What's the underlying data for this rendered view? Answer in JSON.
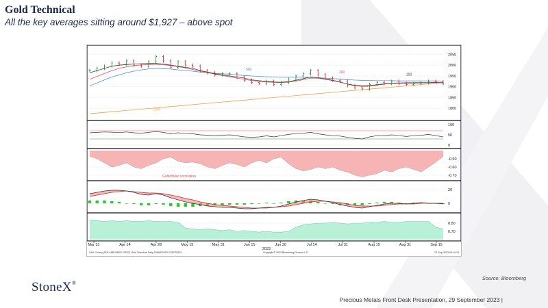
{
  "slide": {
    "title": "Gold Technical",
    "subtitle": "All the key averages sitting around $1,927 – above spot",
    "brand": "StoneX",
    "brand_mark": "®",
    "source": "Source: Bloomberg",
    "footer": "Precious Metals Front Desk Presentation, 29 September 2023 |"
  },
  "colors": {
    "ma50": "#4a90d9",
    "ma100": "#404040",
    "ma200": "#e05060",
    "ma2000": "#f0a040",
    "correlation_fill": "#f7b4b4",
    "volume_fill": "#b8f0d8",
    "macd_hist": "#22cc22"
  },
  "chart_data": {
    "type": "line",
    "title": "",
    "x_labels": [
      "Mar 31",
      "Apr 14",
      "Apr 28",
      "May 15",
      "May 31",
      "Jun 15",
      "Jun 30",
      "Jul 14",
      "Jul 31",
      "Aug 15",
      "Aug 31",
      "Sep 15"
    ],
    "x_year": "2023",
    "footer_left": "XAU Curncy (DOLLAR INDEX SPOT) Gold Technical  Daily 24MAR2023-27SEP2023",
    "footer_center": "Copyright© 2023 Bloomberg Finance L.P.",
    "footer_right": "27-Sep-2023 05:14:16",
    "panels": {
      "price": {
        "ylim": [
          1750,
          2080
        ],
        "yticks": [
          1800,
          1850,
          1900,
          1950,
          2000,
          2050
        ],
        "price": [
          1975,
          1985,
          1995,
          2010,
          2005,
          2020,
          2000,
          1995,
          2015,
          2040,
          2020,
          1990,
          2015,
          2000,
          1995,
          1975,
          1965,
          1955,
          1960,
          1960,
          1945,
          1930,
          1920,
          1915,
          1925,
          1910,
          1920,
          1935,
          1950,
          1960,
          1975,
          1955,
          1940,
          1930,
          1925,
          1905,
          1895,
          1890,
          1910,
          1920,
          1915,
          1925,
          1915,
          1910,
          1915,
          1918,
          1925,
          1922,
          1915
        ],
        "ma_labels": [
          {
            "label": "500",
            "color_key": "ma50"
          },
          {
            "label": "200",
            "color_key": "ma200"
          },
          {
            "label": "100",
            "color_key": "ma100"
          },
          {
            "label": "2000",
            "color_key": "ma2000"
          }
        ],
        "ma50": [
          1905,
          1918,
          1932,
          1945,
          1955,
          1965,
          1972,
          1978,
          1983,
          1985,
          1984,
          1982,
          1978,
          1975,
          1972,
          1968,
          1965,
          1962,
          1960,
          1958,
          1955,
          1952,
          1950,
          1948,
          1946,
          1945,
          1944,
          1944,
          1944,
          1944,
          1943,
          1942,
          1940,
          1938,
          1935,
          1933,
          1931,
          1930,
          1929,
          1928,
          1928,
          1928,
          1927,
          1927,
          1927,
          1927,
          1927,
          1927,
          1926
        ],
        "ma100": [
          1965,
          1975,
          1985,
          1995,
          2000,
          2003,
          2005,
          2007,
          2008,
          2008,
          2005,
          2000,
          1995,
          1990,
          1985,
          1975,
          1968,
          1960,
          1955,
          1950,
          1945,
          1940,
          1932,
          1928,
          1925,
          1922,
          1921,
          1924,
          1930,
          1938,
          1945,
          1942,
          1936,
          1930,
          1922,
          1912,
          1905,
          1902,
          1903,
          1908,
          1912,
          1915,
          1916,
          1917,
          1917,
          1918,
          1918,
          1919,
          1918
        ],
        "ma200": [
          1935,
          1948,
          1962,
          1975,
          1985,
          1992,
          1998,
          2001,
          2003,
          2004,
          2002,
          1998,
          1993,
          1987,
          1980,
          1972,
          1965,
          1958,
          1952,
          1946,
          1940,
          1934,
          1929,
          1925,
          1922,
          1920,
          1919,
          1921,
          1926,
          1933,
          1940,
          1939,
          1934,
          1928,
          1921,
          1913,
          1907,
          1905,
          1906,
          1910,
          1914,
          1917,
          1918,
          1919,
          1919,
          1920,
          1920,
          1920,
          1919
        ],
        "ma2000": [
          1775,
          1778,
          1781,
          1784,
          1787,
          1790,
          1793,
          1796,
          1799,
          1802,
          1805,
          1808,
          1811,
          1814,
          1817,
          1820,
          1823,
          1826,
          1829,
          1832,
          1835,
          1838,
          1841,
          1844,
          1847,
          1850,
          1853,
          1856,
          1859,
          1862,
          1865,
          1868,
          1871,
          1874,
          1877,
          1880,
          1883,
          1886,
          1889,
          1892,
          1895,
          1898,
          1901,
          1904,
          1907,
          1910,
          1913,
          1916,
          1920
        ]
      },
      "rsi": {
        "ylim": [
          -10,
          110
        ],
        "yticks": [
          0,
          50,
          100
        ],
        "values": [
          60,
          62,
          64,
          63,
          61,
          64,
          60,
          58,
          62,
          66,
          62,
          55,
          60,
          56,
          55,
          50,
          48,
          45,
          48,
          50,
          45,
          40,
          38,
          40,
          45,
          40,
          46,
          52,
          56,
          58,
          62,
          55,
          50,
          46,
          44,
          38,
          33,
          30,
          40,
          46,
          45,
          50,
          46,
          42,
          46,
          48,
          52,
          46,
          40
        ]
      },
      "correlation": {
        "label": "Gold/dollar correlation",
        "ylim": [
          -0.75,
          -0.4
        ],
        "yticks": [
          -0.5,
          -0.6,
          -0.7
        ],
        "values": [
          -0.47,
          -0.5,
          -0.55,
          -0.6,
          -0.58,
          -0.55,
          -0.6,
          -0.62,
          -0.58,
          -0.55,
          -0.5,
          -0.48,
          -0.53,
          -0.55,
          -0.54,
          -0.56,
          -0.6,
          -0.62,
          -0.58,
          -0.55,
          -0.57,
          -0.6,
          -0.55,
          -0.52,
          -0.55,
          -0.5,
          -0.48,
          -0.56,
          -0.62,
          -0.65,
          -0.63,
          -0.6,
          -0.62,
          -0.6,
          -0.64,
          -0.66,
          -0.7,
          -0.72,
          -0.7,
          -0.68,
          -0.64,
          -0.66,
          -0.62,
          -0.6,
          -0.63,
          -0.66,
          -0.6,
          -0.54,
          -0.47
        ]
      },
      "macd": {
        "ylim": [
          -12,
          30
        ],
        "yticks": [
          0,
          20
        ],
        "macd": [
          14,
          16,
          18,
          19,
          19,
          18,
          16,
          13,
          12,
          14,
          12,
          8,
          5,
          2,
          0,
          -2,
          -4,
          -5,
          -6,
          -6,
          -7,
          -8,
          -8,
          -7,
          -6,
          -6,
          -4,
          -1,
          2,
          4,
          6,
          5,
          3,
          1,
          -2,
          -4,
          -6,
          -7,
          -5,
          -3,
          -1,
          0,
          0,
          -1,
          0,
          1,
          0,
          0,
          -1
        ],
        "signal": [
          10,
          12,
          14,
          16,
          17,
          18,
          17,
          16,
          15,
          15,
          14,
          12,
          10,
          7,
          5,
          2,
          0,
          -2,
          -3,
          -4,
          -5,
          -6,
          -7,
          -7,
          -7,
          -6,
          -5,
          -4,
          -2,
          0,
          2,
          3,
          3,
          2,
          1,
          -1,
          -3,
          -4,
          -4,
          -4,
          -3,
          -2,
          -1,
          -1,
          -1,
          0,
          0,
          0,
          0
        ],
        "hist": [
          4,
          4,
          4,
          3,
          2,
          0,
          -1,
          -3,
          -3,
          -1,
          -2,
          -4,
          -5,
          -5,
          -5,
          -4,
          -4,
          -3,
          -3,
          -2,
          -2,
          -2,
          -1,
          0,
          1,
          0,
          1,
          3,
          4,
          4,
          4,
          2,
          0,
          -1,
          -3,
          -3,
          -3,
          -3,
          -1,
          1,
          2,
          2,
          1,
          0,
          1,
          1,
          0,
          0,
          -1
        ]
      },
      "volume": {
        "ylim": [
          0.6,
          0.9
        ],
        "yticks": [
          0.7,
          0.8
        ],
        "values": [
          0.84,
          0.83,
          0.82,
          0.83,
          0.82,
          0.83,
          0.82,
          0.82,
          0.83,
          0.82,
          0.82,
          0.82,
          0.81,
          0.74,
          0.73,
          0.72,
          0.73,
          0.72,
          0.71,
          0.72,
          0.7,
          0.71,
          0.7,
          0.69,
          0.7,
          0.69,
          0.69,
          0.7,
          0.75,
          0.78,
          0.79,
          0.8,
          0.8,
          0.81,
          0.8,
          0.79,
          0.8,
          0.8,
          0.81,
          0.81,
          0.82,
          0.81,
          0.81,
          0.82,
          0.82,
          0.82,
          0.82,
          0.75,
          0.73
        ]
      }
    }
  }
}
